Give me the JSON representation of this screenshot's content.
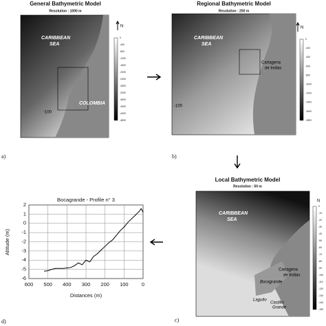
{
  "panels": {
    "a": {
      "label": "a)",
      "title": "General Bathymetric Model",
      "subtitle": "Resolution : 1000 m",
      "north": "N",
      "sea": [
        "CARIBBEAN",
        "SEA"
      ],
      "land": "COLOMBIA",
      "contour": "-100",
      "colorbar": [
        "0",
        "-400",
        "-800",
        "-1200",
        "-1600",
        "-2000",
        "-2400",
        "-2800",
        "-3200",
        "-3600",
        "-4000",
        "-4400",
        "-4800"
      ]
    },
    "b": {
      "label": "b)",
      "title": "Regional Bathymetric Model",
      "subtitle": "Resolution : 250 m",
      "north": "N",
      "sea": [
        "CARIBBEAN",
        "SEA"
      ],
      "city": [
        "Cartagena",
        "de Indias"
      ],
      "contour": "-100",
      "colorbar": [
        "0",
        "-200",
        "-400",
        "-600",
        "-800",
        "-1000",
        "-1200",
        "-1400",
        "-1600",
        "-1800"
      ]
    },
    "c": {
      "label": "c)",
      "title": "Local Bathymetric Model",
      "subtitle": "Resolution : 50 m",
      "north": "N",
      "sea": [
        "CARIBBEAN",
        "SEA"
      ],
      "city": [
        "Cartagena",
        "de Indias"
      ],
      "places": [
        "Bocagrande",
        "Laguito",
        "Castillo",
        "Grande"
      ],
      "colorbar": [
        "0",
        "-10",
        "-20",
        "-30",
        "-40",
        "-50",
        "-60",
        "-70",
        "-80",
        "-90",
        "-100",
        "-110",
        "-120",
        "-130",
        "-140",
        "-150"
      ]
    }
  },
  "chart_data": {
    "type": "line",
    "label": "d)",
    "title": "Bocagrande - Profile n° 3",
    "x_label": "Distances (m)",
    "y_label": "Altitude (m)",
    "xlim": [
      600,
      0
    ],
    "xticks": [
      600,
      500,
      400,
      300,
      200,
      100,
      0
    ],
    "ylim": [
      -6,
      2
    ],
    "yticks": [
      -6,
      -5,
      -4,
      -3,
      -2,
      -1,
      0,
      1,
      2
    ],
    "grid": true,
    "series": [
      {
        "color": "#000000",
        "x": [
          520,
          500,
          480,
          460,
          440,
          420,
          400,
          380,
          360,
          340,
          320,
          300,
          280,
          260,
          240,
          220,
          200,
          180,
          160,
          140,
          120,
          100,
          80,
          60,
          40,
          20,
          10,
          0
        ],
        "values": [
          -5.2,
          -5.15,
          -5.0,
          -4.9,
          -4.9,
          -4.9,
          -4.85,
          -4.8,
          -4.6,
          -4.3,
          -4.5,
          -4.0,
          -4.2,
          -3.6,
          -3.3,
          -2.9,
          -2.5,
          -2.1,
          -1.8,
          -1.3,
          -0.8,
          -0.4,
          0.1,
          0.5,
          0.9,
          1.3,
          1.6,
          1.2
        ]
      }
    ]
  }
}
